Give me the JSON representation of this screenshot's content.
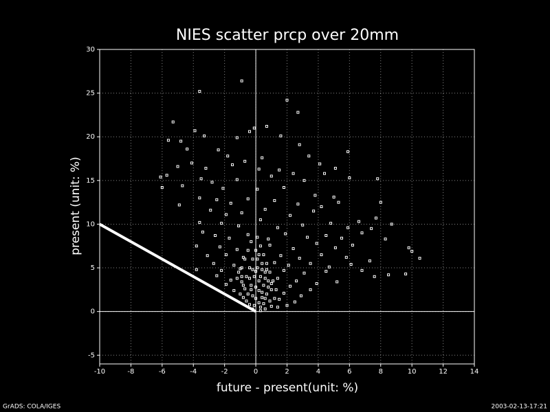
{
  "chart_data": {
    "type": "scatter",
    "title": "NIES scatter prcp over 20mm",
    "xlabel": "future - present(unit: %)",
    "ylabel": "present (unit: %)",
    "footer_left": "GrADS: COLA/IGES",
    "footer_right": "2003-02-13-17:21",
    "color": "#ffffff",
    "grid": true,
    "xlim": [
      -10,
      14
    ],
    "ylim": [
      -6,
      30
    ],
    "xticks": [
      -10,
      -8,
      -6,
      -4,
      -2,
      0,
      2,
      4,
      6,
      8,
      10,
      12,
      14
    ],
    "yticks": [
      -5,
      0,
      5,
      10,
      15,
      20,
      25,
      30
    ],
    "reference_line": {
      "x": [
        -10,
        0
      ],
      "y": [
        10,
        0
      ]
    },
    "x": [
      -3.6,
      -0.9,
      2,
      2.7,
      -5.3,
      -3.9,
      -0.1,
      0.7,
      -5.6,
      -4.8,
      -3.3,
      -1.2,
      -0.4,
      1.6,
      2.8,
      -4.4,
      -2.4,
      -1.8,
      0.4,
      3.4,
      5.9,
      -5,
      -4.1,
      -3.2,
      -1.5,
      -0.7,
      0.2,
      1.5,
      2.4,
      4.1,
      5.1,
      -6.1,
      -5.7,
      -3.5,
      -2.8,
      -1.2,
      1,
      3.1,
      4.4,
      6,
      7.8,
      -6,
      -4.7,
      -2.1,
      0.1,
      1.8,
      3.8,
      5,
      -4.9,
      -3.6,
      -2.5,
      -1.6,
      -0.5,
      1.2,
      2.7,
      4.2,
      5.3,
      8,
      -2.9,
      -1.9,
      -0.9,
      0.6,
      2.2,
      3.7,
      6.6,
      7.7,
      -3.6,
      -2.2,
      -1.1,
      0.3,
      1.4,
      3,
      4.8,
      5.9,
      7.4,
      8.7,
      -3.4,
      -2.6,
      -1.7,
      -0.5,
      0.8,
      1.9,
      3.3,
      4.5,
      5.5,
      6.8,
      8.3,
      -3.8,
      -2.3,
      -1.2,
      0.9,
      2.4,
      3.9,
      5.1,
      6.2,
      9.8,
      10,
      -3.1,
      -1.9,
      -0.8,
      1.6,
      2.8,
      4.2,
      5.8,
      10.5,
      -2.7,
      -1.4,
      1.2,
      2.1,
      3.5,
      4.7,
      6.1,
      7.3,
      -3.8,
      -2.2,
      -1,
      0.7,
      1.8,
      3.1,
      4.5,
      6.8,
      8.5,
      9.6,
      -2.5,
      -1.6,
      1.4,
      2.6,
      3.9,
      5.2,
      7.6,
      -1.9,
      -0.9,
      2.2,
      3.5,
      -1.4,
      1.8,
      2.9,
      -0.8,
      1.5,
      2.5,
      -0.4,
      1,
      2,
      0.3,
      0.6,
      -0.2,
      -1,
      -0.8,
      -0.6,
      -0.4,
      -0.2,
      0,
      0.2,
      0.4,
      0.6,
      0.8,
      1,
      1.2,
      -0.9,
      -0.7,
      -0.5,
      -0.3,
      0.1,
      0.3,
      0.5,
      0.7,
      0.9,
      1.1,
      1.3,
      -1.2,
      -1.1,
      -0.5,
      -0.3,
      -0.1,
      0.1,
      0.3,
      0.5,
      0.7,
      0.9,
      -0.6,
      -0.2,
      0,
      0.2,
      0.4,
      0.6,
      0.2,
      -0.4,
      0,
      0.4,
      0.8,
      -0.7,
      0,
      0.3,
      -0.1,
      0.5,
      1.4,
      0.1,
      -0.2,
      0.6,
      1,
      -0.9,
      0.2,
      0.4,
      -0.3
    ],
    "values": [
      25.2,
      26.4,
      24.2,
      22.8,
      21.7,
      20.7,
      21,
      21.2,
      19.6,
      19.5,
      20.1,
      19.9,
      20.6,
      20.1,
      19.1,
      18.6,
      18.5,
      17.8,
      17.6,
      17.8,
      18.3,
      16.6,
      17,
      16.4,
      16.8,
      17.2,
      16.3,
      16.2,
      15.8,
      16.9,
      16.4,
      15.4,
      15.6,
      15.2,
      14.8,
      15.1,
      15.5,
      15,
      15.8,
      15.3,
      15.2,
      14.2,
      14.4,
      14.1,
      14,
      14.2,
      13.3,
      13.1,
      12.2,
      13,
      12.8,
      12.4,
      12.9,
      12.7,
      12.3,
      12,
      12.5,
      12.5,
      11.6,
      11.1,
      11.3,
      11.7,
      11,
      11.5,
      10.3,
      10.7,
      10.2,
      10.1,
      9.8,
      10.5,
      9.6,
      9.9,
      10.1,
      9.6,
      9.5,
      10,
      9.1,
      8.7,
      8.4,
      8.8,
      8.3,
      8.9,
      8.5,
      8.7,
      8.4,
      9,
      8.3,
      7.5,
      7.4,
      7.1,
      7.6,
      7.2,
      7.8,
      7.3,
      7.6,
      7.3,
      6.9,
      6.4,
      6.5,
      6.2,
      6.4,
      6.1,
      6.5,
      6.2,
      6.1,
      5.5,
      5.3,
      5.6,
      5.3,
      5.5,
      5.1,
      5.4,
      5.8,
      4.8,
      4.7,
      4.9,
      4.8,
      4.7,
      4.4,
      4.6,
      4.7,
      4.2,
      4.3,
      4.1,
      3.6,
      3.8,
      3.5,
      3.2,
      3.4,
      4,
      3.1,
      3.4,
      2.9,
      2.5,
      2.4,
      2.1,
      1.8,
      1.6,
      1.4,
      1.1,
      0.8,
      0.6,
      0.7,
      0.1,
      0.3,
      0.3,
      2,
      3,
      4,
      5,
      6,
      7,
      6.5,
      5.5,
      4.5,
      3.5,
      2.5,
      1.5,
      5,
      6,
      7,
      8,
      8.5,
      7.5,
      6.5,
      5.5,
      4.5,
      3.5,
      2.5,
      3.8,
      4.5,
      2,
      3,
      4,
      5,
      4,
      3,
      2,
      1.2,
      1.2,
      1.8,
      2.8,
      3.5,
      2.2,
      1.5,
      1,
      3.8,
      4.6,
      4.8,
      2.8,
      2.6,
      1.5,
      0.5,
      0.7,
      0.9,
      0.5,
      6,
      4.8,
      3.8,
      3.2,
      4,
      2.4,
      1.6,
      2.5
    ]
  }
}
